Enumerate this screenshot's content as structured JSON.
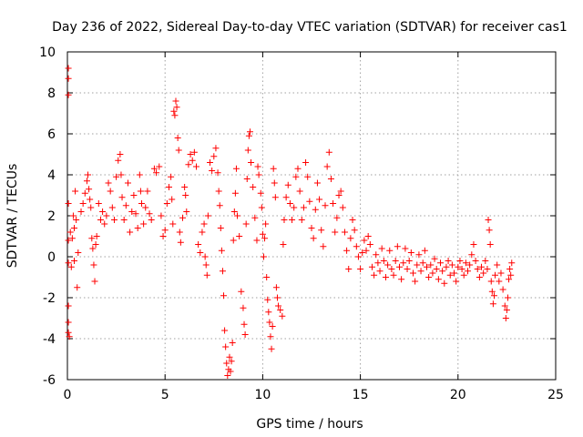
{
  "chart_data": {
    "type": "scatter",
    "title": "Day 236 of 2022, Sidereal Day-to-day VTEC variation (SDTVAR) for receiver cas1",
    "xlabel": "GPS time / hours",
    "ylabel": "SDTVAR / TECUs",
    "xlim": [
      0,
      25
    ],
    "ylim": [
      -6,
      10
    ],
    "x_ticks": [
      "0",
      "5",
      "10",
      "15",
      "20",
      "25"
    ],
    "y_ticks": [
      "-6",
      "-4",
      "-2",
      "0",
      "2",
      "4",
      "6",
      "8",
      "10"
    ],
    "grid": true,
    "marker": "+",
    "color": "#ff0000",
    "series": [
      {
        "name": "cas1",
        "points": [
          [
            0.05,
            9.2
          ],
          [
            0.05,
            8.7
          ],
          [
            0.05,
            7.9
          ],
          [
            0.05,
            2.6
          ],
          [
            0.05,
            0.8
          ],
          [
            0.05,
            -0.3
          ],
          [
            0.05,
            -2.4
          ],
          [
            0.05,
            -3.2
          ],
          [
            0.05,
            -3.7
          ],
          [
            0.1,
            -3.9
          ],
          [
            0.15,
            1.2
          ],
          [
            0.2,
            -0.5
          ],
          [
            0.25,
            0.9
          ],
          [
            0.3,
            2.0
          ],
          [
            0.35,
            1.4
          ],
          [
            0.35,
            -0.2
          ],
          [
            0.4,
            3.2
          ],
          [
            0.45,
            1.8
          ],
          [
            0.5,
            -1.5
          ],
          [
            0.55,
            0.2
          ],
          [
            0.7,
            2.2
          ],
          [
            0.8,
            2.6
          ],
          [
            0.9,
            3.1
          ],
          [
            1.0,
            3.7
          ],
          [
            1.05,
            4.0
          ],
          [
            1.1,
            3.3
          ],
          [
            1.15,
            2.8
          ],
          [
            1.2,
            2.4
          ],
          [
            1.25,
            0.9
          ],
          [
            1.3,
            0.4
          ],
          [
            1.35,
            -0.4
          ],
          [
            1.4,
            -1.2
          ],
          [
            1.45,
            0.6
          ],
          [
            1.5,
            1.0
          ],
          [
            1.6,
            2.6
          ],
          [
            1.7,
            1.8
          ],
          [
            1.8,
            2.2
          ],
          [
            1.9,
            1.6
          ],
          [
            2.0,
            2.0
          ],
          [
            2.1,
            3.6
          ],
          [
            2.2,
            3.2
          ],
          [
            2.3,
            2.4
          ],
          [
            2.4,
            1.8
          ],
          [
            2.5,
            3.9
          ],
          [
            2.6,
            4.7
          ],
          [
            2.7,
            5.0
          ],
          [
            2.75,
            4.0
          ],
          [
            2.8,
            2.9
          ],
          [
            2.9,
            1.8
          ],
          [
            3.0,
            2.5
          ],
          [
            3.1,
            3.6
          ],
          [
            3.2,
            1.2
          ],
          [
            3.3,
            2.2
          ],
          [
            3.4,
            3.0
          ],
          [
            3.5,
            2.1
          ],
          [
            3.6,
            1.4
          ],
          [
            3.7,
            4.0
          ],
          [
            3.75,
            3.2
          ],
          [
            3.8,
            2.6
          ],
          [
            3.9,
            1.6
          ],
          [
            4.0,
            2.4
          ],
          [
            4.1,
            3.2
          ],
          [
            4.2,
            2.1
          ],
          [
            4.3,
            1.8
          ],
          [
            4.45,
            4.3
          ],
          [
            4.55,
            4.1
          ],
          [
            4.7,
            4.4
          ],
          [
            4.8,
            2.0
          ],
          [
            4.9,
            1.0
          ],
          [
            5.0,
            1.3
          ],
          [
            5.1,
            2.6
          ],
          [
            5.2,
            3.4
          ],
          [
            5.3,
            3.9
          ],
          [
            5.35,
            2.8
          ],
          [
            5.4,
            1.6
          ],
          [
            5.45,
            7.1
          ],
          [
            5.5,
            6.9
          ],
          [
            5.55,
            7.6
          ],
          [
            5.6,
            7.3
          ],
          [
            5.65,
            5.8
          ],
          [
            5.7,
            5.2
          ],
          [
            5.75,
            1.2
          ],
          [
            5.8,
            0.7
          ],
          [
            5.9,
            1.9
          ],
          [
            6.0,
            3.4
          ],
          [
            6.05,
            3.0
          ],
          [
            6.1,
            2.2
          ],
          [
            6.2,
            4.5
          ],
          [
            6.3,
            5.0
          ],
          [
            6.4,
            4.7
          ],
          [
            6.5,
            5.1
          ],
          [
            6.6,
            4.4
          ],
          [
            6.7,
            0.6
          ],
          [
            6.8,
            0.2
          ],
          [
            6.9,
            1.2
          ],
          [
            7.0,
            1.6
          ],
          [
            7.05,
            0.0
          ],
          [
            7.1,
            -0.4
          ],
          [
            7.15,
            -0.9
          ],
          [
            7.2,
            2.0
          ],
          [
            7.3,
            4.6
          ],
          [
            7.4,
            4.2
          ],
          [
            7.5,
            4.9
          ],
          [
            7.6,
            5.3
          ],
          [
            7.7,
            4.1
          ],
          [
            7.75,
            3.2
          ],
          [
            7.8,
            2.5
          ],
          [
            7.85,
            1.4
          ],
          [
            7.9,
            0.3
          ],
          [
            7.95,
            -0.7
          ],
          [
            8.0,
            -1.9
          ],
          [
            8.05,
            -3.6
          ],
          [
            8.1,
            -4.4
          ],
          [
            8.15,
            -5.2
          ],
          [
            8.2,
            -5.8
          ],
          [
            8.25,
            -5.5
          ],
          [
            8.3,
            -4.9
          ],
          [
            8.35,
            -5.6
          ],
          [
            8.4,
            -5.1
          ],
          [
            8.45,
            -4.2
          ],
          [
            8.5,
            0.8
          ],
          [
            8.55,
            2.2
          ],
          [
            8.6,
            3.1
          ],
          [
            8.65,
            4.3
          ],
          [
            8.7,
            2.0
          ],
          [
            8.8,
            1.0
          ],
          [
            8.9,
            -1.7
          ],
          [
            9.0,
            -2.5
          ],
          [
            9.05,
            -3.3
          ],
          [
            9.1,
            -3.8
          ],
          [
            9.15,
            1.6
          ],
          [
            9.2,
            3.8
          ],
          [
            9.25,
            5.2
          ],
          [
            9.3,
            5.9
          ],
          [
            9.35,
            6.1
          ],
          [
            9.4,
            4.6
          ],
          [
            9.5,
            3.4
          ],
          [
            9.6,
            1.9
          ],
          [
            9.7,
            0.8
          ],
          [
            9.75,
            4.4
          ],
          [
            9.8,
            4.0
          ],
          [
            9.9,
            3.1
          ],
          [
            9.95,
            2.4
          ],
          [
            10.0,
            1.1
          ],
          [
            10.05,
            0.0
          ],
          [
            10.1,
            0.9
          ],
          [
            10.15,
            1.6
          ],
          [
            10.2,
            -1.0
          ],
          [
            10.25,
            -2.1
          ],
          [
            10.3,
            -2.7
          ],
          [
            10.35,
            -3.2
          ],
          [
            10.4,
            -3.9
          ],
          [
            10.45,
            -4.5
          ],
          [
            10.5,
            -3.4
          ],
          [
            10.55,
            4.3
          ],
          [
            10.6,
            3.6
          ],
          [
            10.65,
            2.9
          ],
          [
            10.7,
            -1.5
          ],
          [
            10.75,
            -2.0
          ],
          [
            10.8,
            -2.4
          ],
          [
            10.9,
            -2.6
          ],
          [
            11.0,
            -2.9
          ],
          [
            11.05,
            0.6
          ],
          [
            11.1,
            1.8
          ],
          [
            11.2,
            2.9
          ],
          [
            11.3,
            3.5
          ],
          [
            11.4,
            2.6
          ],
          [
            11.5,
            1.8
          ],
          [
            11.6,
            2.4
          ],
          [
            11.7,
            3.9
          ],
          [
            11.8,
            4.3
          ],
          [
            11.9,
            3.2
          ],
          [
            12.0,
            1.8
          ],
          [
            12.1,
            2.4
          ],
          [
            12.2,
            4.6
          ],
          [
            12.3,
            3.9
          ],
          [
            12.4,
            2.7
          ],
          [
            12.5,
            1.4
          ],
          [
            12.6,
            0.9
          ],
          [
            12.7,
            2.3
          ],
          [
            12.8,
            3.6
          ],
          [
            12.9,
            2.8
          ],
          [
            13.0,
            1.3
          ],
          [
            13.1,
            0.5
          ],
          [
            13.2,
            2.5
          ],
          [
            13.3,
            4.4
          ],
          [
            13.4,
            5.1
          ],
          [
            13.5,
            3.8
          ],
          [
            13.6,
            2.6
          ],
          [
            13.7,
            1.2
          ],
          [
            13.8,
            1.9
          ],
          [
            13.9,
            3.0
          ],
          [
            14.0,
            3.2
          ],
          [
            14.1,
            2.4
          ],
          [
            14.2,
            1.2
          ],
          [
            14.3,
            0.3
          ],
          [
            14.4,
            -0.6
          ],
          [
            14.5,
            0.9
          ],
          [
            14.6,
            1.8
          ],
          [
            14.7,
            1.3
          ],
          [
            14.8,
            0.5
          ],
          [
            14.9,
            0.0
          ],
          [
            15.0,
            -0.6
          ],
          [
            15.1,
            0.2
          ],
          [
            15.2,
            0.8
          ],
          [
            15.3,
            0.3
          ],
          [
            15.4,
            1.0
          ],
          [
            15.5,
            0.6
          ],
          [
            15.6,
            -0.5
          ],
          [
            15.7,
            -0.9
          ],
          [
            15.8,
            0.1
          ],
          [
            15.9,
            -0.3
          ],
          [
            16.0,
            -0.7
          ],
          [
            16.1,
            0.4
          ],
          [
            16.2,
            -0.2
          ],
          [
            16.3,
            -1.0
          ],
          [
            16.4,
            -0.4
          ],
          [
            16.5,
            0.3
          ],
          [
            16.6,
            -0.6
          ],
          [
            16.7,
            -0.9
          ],
          [
            16.8,
            -0.2
          ],
          [
            16.9,
            0.5
          ],
          [
            17.0,
            -0.5
          ],
          [
            17.1,
            -1.1
          ],
          [
            17.2,
            -0.3
          ],
          [
            17.3,
            0.4
          ],
          [
            17.4,
            -0.6
          ],
          [
            17.5,
            -0.2
          ],
          [
            17.6,
            0.2
          ],
          [
            17.7,
            -0.8
          ],
          [
            17.8,
            -1.2
          ],
          [
            17.9,
            -0.4
          ],
          [
            18.0,
            0.1
          ],
          [
            18.1,
            -0.7
          ],
          [
            18.2,
            -0.3
          ],
          [
            18.3,
            0.3
          ],
          [
            18.4,
            -0.5
          ],
          [
            18.5,
            -1.0
          ],
          [
            18.6,
            -0.4
          ],
          [
            18.7,
            -0.8
          ],
          [
            18.8,
            -0.1
          ],
          [
            18.9,
            -0.6
          ],
          [
            19.0,
            -1.1
          ],
          [
            19.1,
            -0.3
          ],
          [
            19.2,
            -0.7
          ],
          [
            19.3,
            -1.3
          ],
          [
            19.4,
            -0.5
          ],
          [
            19.5,
            -0.2
          ],
          [
            19.6,
            -0.9
          ],
          [
            19.7,
            -0.4
          ],
          [
            19.8,
            -0.8
          ],
          [
            19.9,
            -1.2
          ],
          [
            20.0,
            -0.5
          ],
          [
            20.1,
            -0.2
          ],
          [
            20.2,
            -0.6
          ],
          [
            20.3,
            -0.9
          ],
          [
            20.4,
            -0.3
          ],
          [
            20.5,
            -0.7
          ],
          [
            20.6,
            -0.4
          ],
          [
            20.7,
            0.1
          ],
          [
            20.8,
            0.6
          ],
          [
            20.9,
            -0.2
          ],
          [
            21.0,
            -0.6
          ],
          [
            21.1,
            -1.0
          ],
          [
            21.2,
            -0.5
          ],
          [
            21.3,
            -0.8
          ],
          [
            21.4,
            -0.2
          ],
          [
            21.5,
            -0.6
          ],
          [
            21.55,
            1.8
          ],
          [
            21.6,
            1.3
          ],
          [
            21.65,
            0.6
          ],
          [
            21.7,
            -1.2
          ],
          [
            21.75,
            -1.7
          ],
          [
            21.8,
            -2.3
          ],
          [
            21.85,
            -1.9
          ],
          [
            21.9,
            -0.9
          ],
          [
            22.0,
            -0.4
          ],
          [
            22.1,
            -1.2
          ],
          [
            22.2,
            -0.8
          ],
          [
            22.3,
            -1.6
          ],
          [
            22.4,
            -2.4
          ],
          [
            22.45,
            -3.0
          ],
          [
            22.5,
            -2.6
          ],
          [
            22.55,
            -2.0
          ],
          [
            22.6,
            -1.1
          ],
          [
            22.65,
            -0.6
          ],
          [
            22.7,
            -0.9
          ],
          [
            22.75,
            -0.3
          ]
        ]
      }
    ]
  }
}
